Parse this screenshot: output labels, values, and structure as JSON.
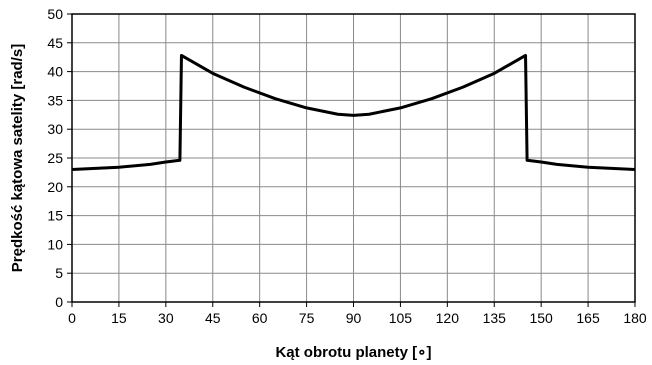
{
  "chart_data": {
    "type": "line",
    "title": "",
    "xlabel": "Kąt obrotu planety [∘]",
    "ylabel": "Prędkość kątowa satelity [rad/s]",
    "xlim": [
      0,
      180
    ],
    "ylim": [
      0,
      50
    ],
    "x_ticks": [
      0,
      15,
      30,
      45,
      60,
      75,
      90,
      105,
      120,
      135,
      150,
      165,
      180
    ],
    "y_ticks": [
      0,
      5,
      10,
      15,
      20,
      25,
      30,
      35,
      40,
      45,
      50
    ],
    "grid": true,
    "line_color": "#000000",
    "series": [
      {
        "x": [
          0,
          15,
          25,
          30,
          34.5,
          35,
          45,
          55,
          65,
          75,
          85,
          90,
          95,
          105,
          115,
          125,
          135,
          145,
          145.5,
          150,
          155,
          165,
          180
        ],
        "y": [
          23.0,
          23.4,
          23.9,
          24.3,
          24.6,
          42.8,
          39.7,
          37.3,
          35.3,
          33.7,
          32.6,
          32.4,
          32.6,
          33.7,
          35.3,
          37.3,
          39.7,
          42.8,
          24.6,
          24.3,
          23.9,
          23.4,
          23.0
        ]
      }
    ]
  }
}
